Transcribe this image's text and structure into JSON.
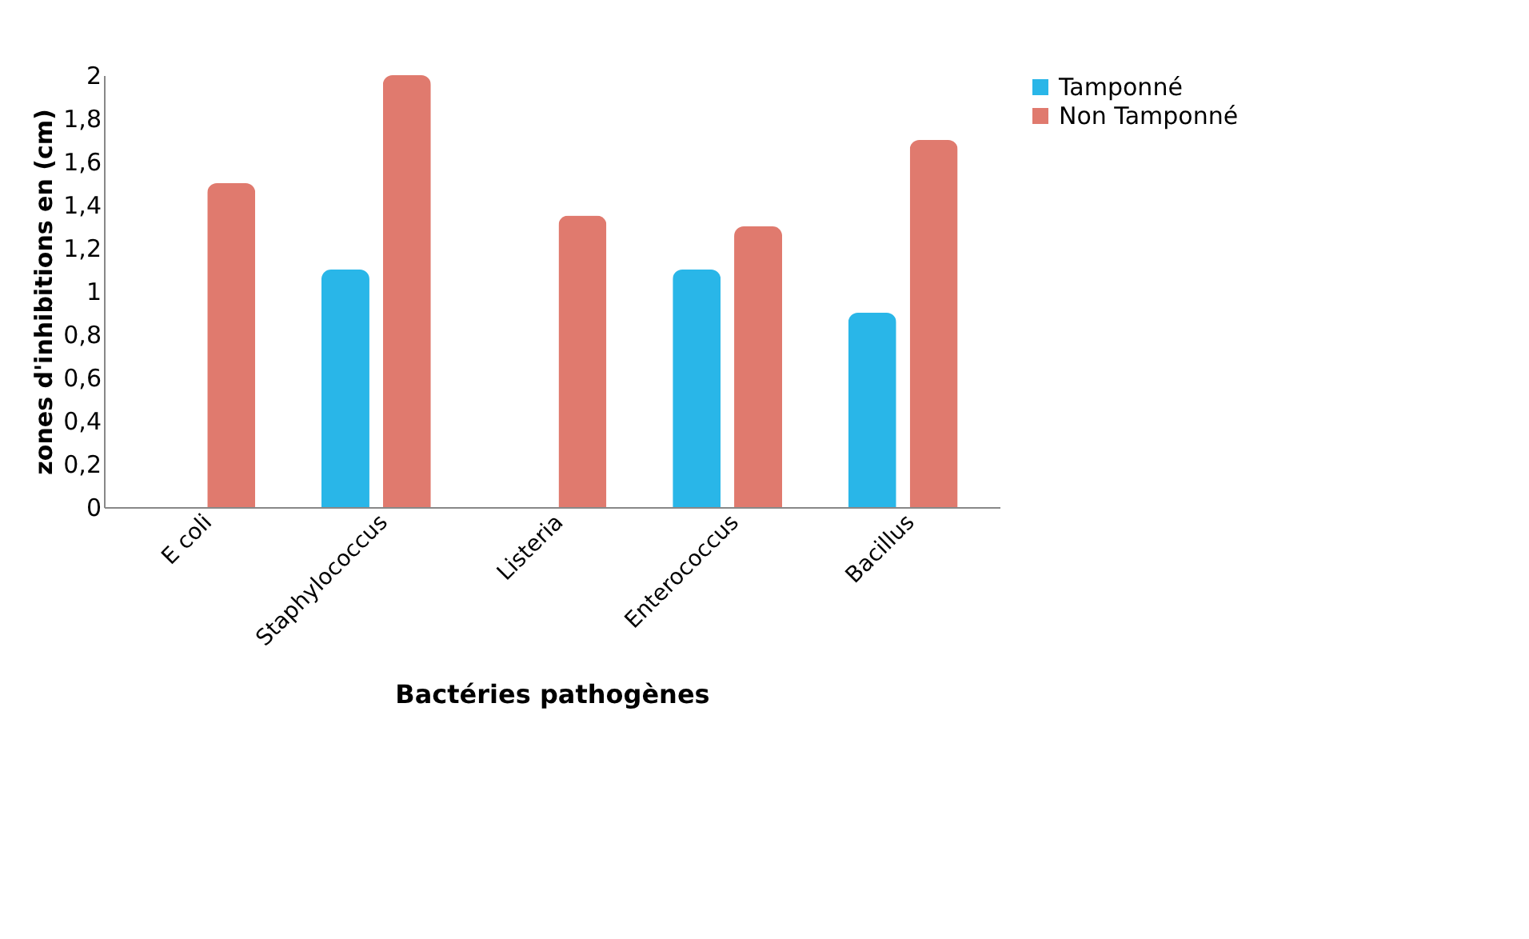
{
  "chart_data": {
    "type": "bar",
    "xlabel": "Bactéries pathogènes",
    "ylabel": "zones d'inhibitions en (cm)",
    "categories": [
      "E coli",
      "Staphylococcus",
      "Listeria",
      "Enterococcus",
      "Bacillus"
    ],
    "series": [
      {
        "name": "Tamponné",
        "color": "#29b6e8",
        "values": [
          0,
          1.1,
          0,
          1.1,
          0.9
        ]
      },
      {
        "name": "Non Tamponné",
        "color": "#e07a6e",
        "values": [
          1.5,
          2.0,
          1.35,
          1.3,
          1.7
        ]
      }
    ],
    "ylim": [
      0,
      2
    ],
    "yticks": [
      0,
      {
        "value": 0.2,
        "label": "0,2"
      },
      {
        "value": 0.4,
        "label": "0,4"
      },
      {
        "value": 0.6,
        "label": "0,6"
      },
      {
        "value": 0.8,
        "label": "0,8"
      },
      1,
      {
        "value": 1.2,
        "label": "1,2"
      },
      {
        "value": 1.4,
        "label": "1,4"
      },
      {
        "value": 1.6,
        "label": "1,6"
      },
      {
        "value": 1.8,
        "label": "1,8"
      },
      2
    ],
    "grid": false,
    "legend": "right"
  }
}
